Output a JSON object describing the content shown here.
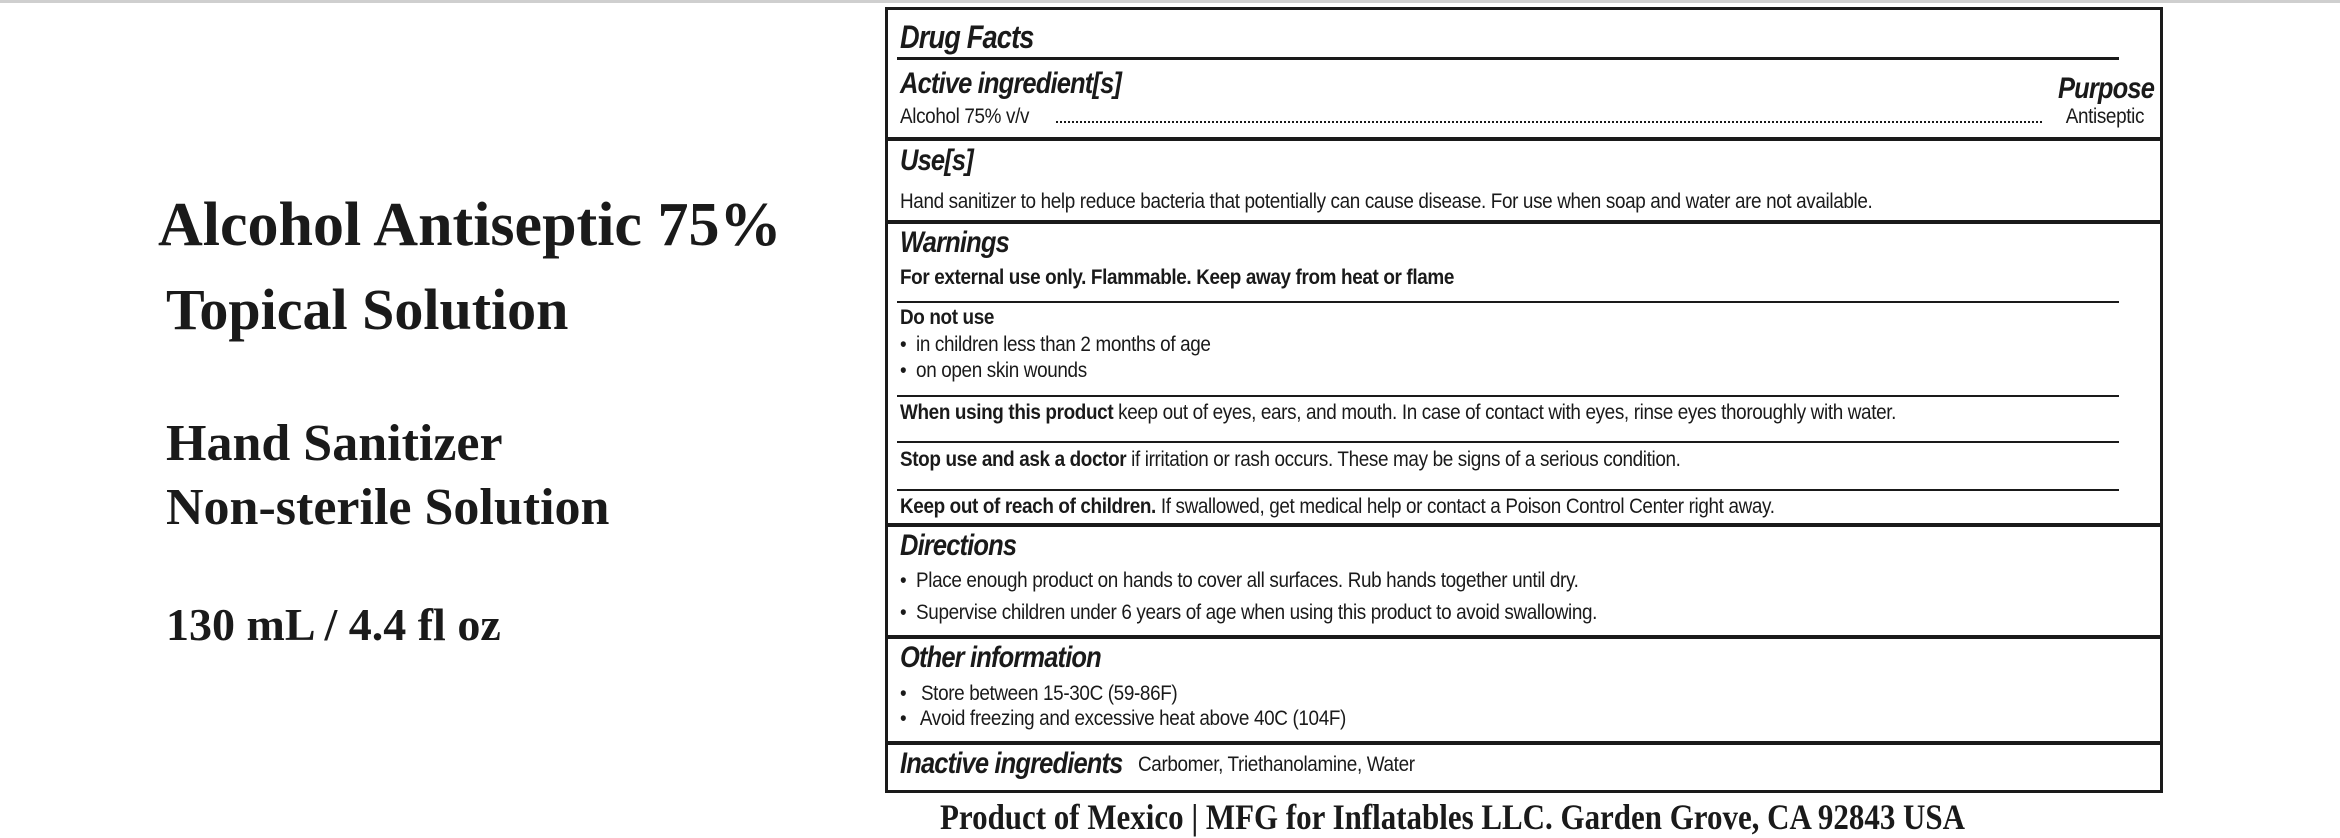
{
  "product": {
    "title": "Alcohol Antiseptic 75%",
    "subtitle": "Topical Solution",
    "type_line1": "Hand Sanitizer",
    "type_line2": "Non-sterile Solution",
    "volume": "130 mL / 4.4 fl oz"
  },
  "drug_facts": {
    "heading": "Drug Facts",
    "active": {
      "heading": "Active ingredient[s]",
      "purpose_heading": "Purpose",
      "ingredient": "Alcohol 75% v/v",
      "purpose": "Antiseptic"
    },
    "uses": {
      "heading": "Use[s]",
      "text": "Hand sanitizer to help reduce bacteria that potentially can cause disease. For use when soap and water are not available."
    },
    "warnings": {
      "heading": "Warnings",
      "external": "For external use only. Flammable. Keep away from heat or flame",
      "do_not_use_heading": "Do not use",
      "do_not_use": [
        "in children less than 2 months of age",
        "on open skin wounds"
      ],
      "when_using_label": "When using this product",
      "when_using_text": " keep out of eyes, ears, and mouth. In case of contact with eyes, rinse eyes thoroughly with water.",
      "stop_use_label": "Stop use and ask a doctor",
      "stop_use_text": " if irritation or rash occurs. These may be signs of a serious condition.",
      "keep_out_label": "Keep out of reach of children.",
      "keep_out_text": " If swallowed, get medical help or contact a Poison Control Center right away."
    },
    "directions": {
      "heading": "Directions",
      "items": [
        "Place enough product on hands to cover all surfaces. Rub hands together until dry.",
        "Supervise children under 6 years of age when using this product to avoid swallowing."
      ]
    },
    "other": {
      "heading": "Other information",
      "items": [
        "Store between 15-30C (59-86F)",
        "Avoid freezing and excessive heat above 40C (104F)"
      ]
    },
    "inactive": {
      "heading": "Inactive ingredients",
      "text": "Carbomer, Triethanolamine, Water"
    }
  },
  "footer": "Product of Mexico |  MFG for Inflatables LLC. Garden Grove, CA 92843 USA",
  "bullet": "•"
}
